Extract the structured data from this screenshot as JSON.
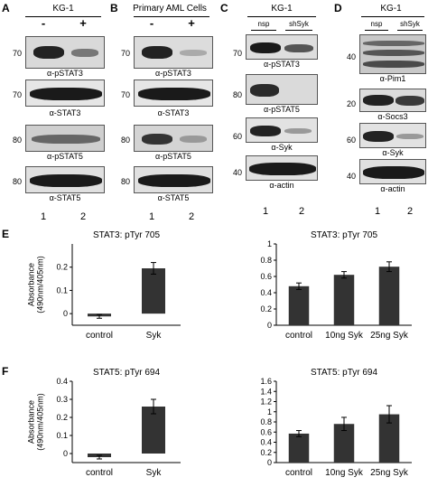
{
  "panels": {
    "A": {
      "letter": "A",
      "title": "KG-1",
      "treat": [
        "-",
        "+"
      ],
      "blots": [
        "α-pSTAT3",
        "α-STAT3",
        "α-pSTAT5",
        "α-STAT5"
      ],
      "mw": [
        "70",
        "70",
        "80",
        "80"
      ],
      "lanes": [
        "1",
        "2"
      ]
    },
    "B": {
      "letter": "B",
      "title": "Primary AML Cells",
      "treat": [
        "-",
        "+"
      ],
      "blots": [
        "α-pSTAT3",
        "α-STAT3",
        "α-pSTAT5",
        "α-STAT5"
      ],
      "mw": [
        "70",
        "70",
        "80",
        "80"
      ],
      "lanes": [
        "1",
        "2"
      ]
    },
    "C": {
      "letter": "C",
      "title": "KG-1",
      "cols": [
        "nsp",
        "shSyk"
      ],
      "blots": [
        "α-pSTAT3",
        "α-pSTAT5",
        "α-Syk",
        "α-actin"
      ],
      "mw": [
        "70",
        "80",
        "60",
        "40"
      ],
      "lanes": [
        "1",
        "2"
      ]
    },
    "D": {
      "letter": "D",
      "title": "KG-1",
      "cols": [
        "nsp",
        "shSyk"
      ],
      "blots": [
        "α-Pim1",
        "α-Socs3",
        "α-Syk",
        "α-actin"
      ],
      "mw": [
        "40",
        "20",
        "60",
        "40"
      ],
      "lanes": [
        "1",
        "2"
      ]
    }
  },
  "section_E": {
    "letter": "E"
  },
  "section_F": {
    "letter": "F"
  },
  "chart_data": [
    {
      "type": "bar",
      "panel": "E",
      "title": "STAT3: pTyr 705",
      "ylabel": "Absorbance (490nm/405nm)",
      "categories": [
        "control",
        "Syk"
      ],
      "values": [
        -0.012,
        0.195
      ],
      "errors": [
        0.008,
        0.025
      ],
      "ylim": [
        -0.05,
        0.3
      ],
      "yticks": [
        0,
        0.1,
        0.2
      ]
    },
    {
      "type": "bar",
      "panel": "E",
      "title": "STAT3: pTyr 705",
      "ylabel": "",
      "categories": [
        "control",
        "10ng Syk",
        "25ng Syk"
      ],
      "values": [
        0.48,
        0.62,
        0.72
      ],
      "errors": [
        0.04,
        0.04,
        0.06
      ],
      "ylim": [
        0,
        1
      ],
      "yticks": [
        0,
        0.2,
        0.4,
        0.6,
        0.8,
        1
      ]
    },
    {
      "type": "bar",
      "panel": "F",
      "title": "STAT5: pTyr 694",
      "ylabel": "Absorbance (490nm/405nm)",
      "categories": [
        "control",
        "Syk"
      ],
      "values": [
        -0.02,
        0.26
      ],
      "errors": [
        0.01,
        0.04
      ],
      "ylim": [
        -0.05,
        0.4
      ],
      "yticks": [
        0,
        0.1,
        0.2,
        0.3,
        0.4
      ]
    },
    {
      "type": "bar",
      "panel": "F",
      "title": "STAT5: pTyr 694",
      "ylabel": "",
      "categories": [
        "control",
        "10ng Syk",
        "25ng Syk"
      ],
      "values": [
        0.57,
        0.76,
        0.95
      ],
      "errors": [
        0.06,
        0.13,
        0.17
      ],
      "ylim": [
        0,
        1.6
      ],
      "yticks": [
        0,
        0.2,
        0.4,
        0.6,
        0.8,
        1,
        1.2,
        1.4,
        1.6
      ]
    }
  ]
}
